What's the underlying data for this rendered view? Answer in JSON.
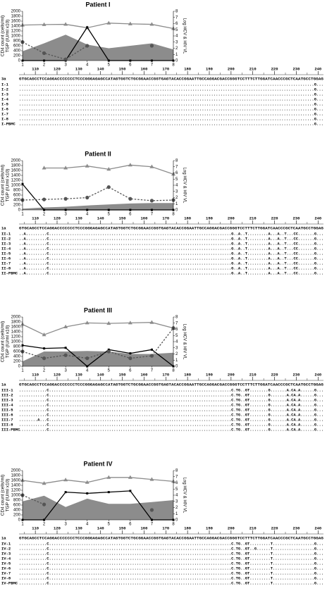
{
  "chart_data": [
    {
      "type": "combo",
      "title": "Patient I",
      "ylabel": [
        "CD4 count (cells/ml)",
        "TGP (IU/ml  x10)"
      ],
      "y2label": "Log HCV & HIV VL",
      "x": [
        1,
        2,
        3,
        4,
        5,
        6,
        7,
        8
      ],
      "xlim": [
        1,
        8
      ],
      "xticks": [
        1,
        2,
        3,
        4,
        5,
        6,
        7,
        8
      ],
      "ylim": [
        0,
        2000
      ],
      "yticks": [
        0,
        200,
        400,
        600,
        800,
        1000,
        1200,
        1400,
        1600,
        1800,
        2000
      ],
      "y2lim": [
        0,
        8
      ],
      "y2ticks": [
        0,
        1,
        2,
        3,
        4,
        5,
        6,
        7,
        8
      ],
      "series": [
        {
          "style": "area",
          "color": "#8c8c8c",
          "values": [
            380,
            700,
            1050,
            650,
            500,
            600,
            700,
            450
          ]
        },
        {
          "style": "line",
          "marker": "triangle",
          "dashed": false,
          "color": "#8c8c8c",
          "values": [
            1440,
            1460,
            1470,
            1330,
            1520,
            1490,
            1470,
            1300
          ]
        },
        {
          "style": "line",
          "marker": "square",
          "dashed": false,
          "color": "#000000",
          "axis": "y2",
          "values": [
            0,
            0,
            0,
            5.4,
            0,
            0,
            0,
            0
          ]
        },
        {
          "style": "line",
          "marker": "circle",
          "dashed": true,
          "color": "#555555",
          "axis": "y2",
          "values": [
            3.0,
            1.2,
            0.2,
            2.4,
            null,
            null,
            2.4,
            null
          ]
        }
      ]
    },
    {
      "type": "combo",
      "title": "Patient II",
      "ylabel": [
        "CD4 count (cells/ml)",
        "TGP (IU/ml  x10)"
      ],
      "y2label": "Log HCV & HIV VL",
      "x": [
        1,
        2,
        3,
        4,
        5,
        6,
        7,
        8
      ],
      "xlim": [
        1,
        8
      ],
      "xticks": [
        1,
        2,
        3,
        4,
        5,
        6,
        7,
        8
      ],
      "ylim": [
        0,
        2000
      ],
      "yticks": [
        0,
        200,
        400,
        600,
        800,
        1000,
        1200,
        1400,
        1600,
        1800,
        2000
      ],
      "y2lim": [
        0,
        8
      ],
      "y2ticks": [
        0,
        1,
        2,
        3,
        4,
        5,
        6,
        7,
        8
      ],
      "series": [
        {
          "style": "area",
          "color": "#8c8c8c",
          "values": [
            50,
            100,
            130,
            180,
            220,
            260,
            280,
            280
          ]
        },
        {
          "style": "line",
          "marker": "triangle",
          "dashed": false,
          "color": "#8c8c8c",
          "values": [
            null,
            1700,
            1700,
            1780,
            1650,
            1820,
            1750,
            1450
          ]
        },
        {
          "style": "line",
          "marker": "square",
          "dashed": false,
          "color": "#000000",
          "axis": "y2",
          "values": [
            4.2,
            0,
            0,
            0,
            0,
            0,
            0,
            0
          ]
        },
        {
          "style": "line",
          "marker": "circle",
          "dashed": true,
          "color": "#555555",
          "axis": "y2",
          "values": [
            1.6,
            1.7,
            1.8,
            2.0,
            3.7,
            1.8,
            1.5,
            1.6
          ]
        }
      ]
    },
    {
      "type": "combo",
      "title": "Patient III",
      "ylabel": [
        "CD4 count (cells/ml)",
        "TGP (IU/ml  x10)"
      ],
      "y2label": "Log HCV & HIV VL",
      "x": [
        1,
        2,
        3,
        4,
        5,
        6,
        7,
        8
      ],
      "xlim": [
        1,
        8
      ],
      "xticks": [
        1,
        2,
        3,
        4,
        5,
        6,
        7,
        8
      ],
      "ylim": [
        0,
        2000
      ],
      "yticks": [
        0,
        200,
        400,
        600,
        800,
        1000,
        1200,
        1400,
        1600,
        1800,
        2000
      ],
      "y2lim": [
        0,
        8
      ],
      "y2ticks": [
        0,
        1,
        2,
        3,
        4,
        5,
        6,
        7,
        8
      ],
      "series": [
        {
          "style": "area",
          "color": "#8c8c8c",
          "values": [
            200,
            600,
            600,
            620,
            600,
            500,
            500,
            550
          ]
        },
        {
          "style": "line",
          "marker": "triangle",
          "dashed": false,
          "color": "#8c8c8c",
          "values": [
            1700,
            1280,
            1600,
            1760,
            1740,
            1760,
            1780,
            1550
          ]
        },
        {
          "style": "line",
          "marker": "square",
          "dashed": false,
          "color": "#000000",
          "axis": "y2",
          "values": [
            3.4,
            2.9,
            3.0,
            0,
            2.7,
            2.1,
            2.7,
            0
          ]
        },
        {
          "style": "line",
          "marker": "circle",
          "dashed": true,
          "color": "#555555",
          "axis": "y2",
          "values": [
            2.4,
            1.3,
            1.8,
            1.3,
            2.4,
            1.3,
            1.7,
            6.2
          ]
        }
      ]
    },
    {
      "type": "combo",
      "title": "Patient IV",
      "ylabel": [
        "CD4 count (cells/ml)",
        "TGP (IU/ml  x10)"
      ],
      "y2label": "Log HCV & HIV VL",
      "x": [
        1,
        2,
        3,
        4,
        5,
        6,
        7,
        8
      ],
      "xlim": [
        1,
        8
      ],
      "xticks": [
        1,
        2,
        3,
        4,
        5,
        6,
        7,
        8
      ],
      "ylim": [
        0,
        2000
      ],
      "yticks": [
        0,
        200,
        400,
        600,
        800,
        1000,
        1200,
        1400,
        1600,
        1800,
        2000
      ],
      "y2lim": [
        0,
        8
      ],
      "y2ticks": [
        0,
        1,
        2,
        3,
        4,
        5,
        6,
        7,
        8
      ],
      "series": [
        {
          "style": "area",
          "color": "#8c8c8c",
          "values": [
            750,
            980,
            520,
            860,
            650,
            650,
            720,
            800
          ]
        },
        {
          "style": "line",
          "marker": "triangle",
          "dashed": false,
          "color": "#8c8c8c",
          "values": [
            1600,
            1480,
            1620,
            1520,
            1720,
            1720,
            1640,
            1560
          ]
        },
        {
          "style": "line",
          "marker": "square",
          "dashed": false,
          "color": "#000000",
          "axis": "y2",
          "values": [
            0,
            0,
            4.5,
            4.3,
            4.5,
            4.7,
            0,
            0
          ]
        },
        {
          "style": "line",
          "marker": "circle",
          "dashed": true,
          "color": "#555555",
          "axis": "y2",
          "values": [
            4.0,
            2.5,
            null,
            null,
            null,
            null,
            1.6,
            null
          ]
        }
      ]
    }
  ],
  "alignments": [
    {
      "ruler": [
        110,
        120,
        130,
        140,
        150,
        160,
        170,
        180,
        190,
        200,
        210,
        220,
        230,
        240
      ],
      "ref_label": "3a",
      "reference": "GTGCAGCCTCCAGGACCCCCCCTCCCGGGAGAGCCATAGTGGTCTGCGGAACCGGTGAGTACACCGGAATTGCCAGGACGACCGGGTCCTTTCTTGGATCAACCCGCTCAATGCCTGGAG",
      "rows": [
        {
          "name": "I-1",
          "seq": "..............................................................................................................................G..."
        },
        {
          "name": "I-2",
          "seq": "..............................................................................................................................G..."
        },
        {
          "name": "I-3",
          "seq": "..............................................................................................................................G..."
        },
        {
          "name": "I-4",
          "seq": "..............................................................................................................................G..."
        },
        {
          "name": "I-5",
          "seq": "..............................................................................................................................G..."
        },
        {
          "name": "I-6",
          "seq": "..............................................................................................................................G..."
        },
        {
          "name": "I-7",
          "seq": "..............................................................................................................................G..."
        },
        {
          "name": "I-8",
          "seq": "..............................................................................................................................G..."
        },
        {
          "name": "I-PBMC",
          "seq": "..............................................................................................................................G..."
        }
      ]
    },
    {
      "ruler": [
        110,
        120,
        130,
        140,
        150,
        160,
        170,
        180,
        190,
        200,
        210,
        220,
        230,
        240
      ],
      "ref_label": "1a",
      "reference": "GTGCAGCCTCCAGGACCCCCCCTCCCGGGAGAGCCATAGTGGTCTGCGGAACCGGTGAGTACACCGGAATTGCCAGGACGACCGGGTCCTTTCTTGGATCAACCCGCTCAATGCCTGGAG",
      "rows": [
        {
          "name": "II-1",
          "seq": "..A.........C...............................................................................G..A..T.........A...A..T...CC.......G..."
        },
        {
          "name": "II-2",
          "seq": "..A.........C...............................................................................G..A..T.........A...A..T...CC.......G..."
        },
        {
          "name": "II-3",
          "seq": "..A.........C...............................................................................G..A..T.........A...A..T...CC.......G..."
        },
        {
          "name": "II-4",
          "seq": "..A.........C...............................................................................G..A..T.........A...A..T...CC.......G..."
        },
        {
          "name": "II-5",
          "seq": "..A.........C...............................................................................G..A..T.........A...A..T...CC.......G..."
        },
        {
          "name": "II-6",
          "seq": "..A.........C...............................................................................G..A..T.........A...A..T...CC.......G..."
        },
        {
          "name": "II-7",
          "seq": "..A.........C...............................................................................G..A..T.........A...A..T...CC.......G..."
        },
        {
          "name": "II-8",
          "seq": "..A.........C...............................................................................G..A..T.........A...A..T...CC.......G..."
        },
        {
          "name": "II-PBMC",
          "seq": "..A.........C...............................................................................G..A..T.........A...A..T...CC.......G..."
        }
      ]
    },
    {
      "ruler": [
        110,
        120,
        130,
        140,
        150,
        160,
        170,
        180,
        190,
        200,
        210,
        220,
        230,
        240
      ],
      "ref_label": "1a",
      "reference": "GTGCAGCCTCCAGGACCCCCCCTCCCGGGAGAGCCATAGTGGTCTGCGGAACCGGTGAGTACACCGGAATTGCCAGGACGACCGGGTCCTTTCTTGGATCAACCCGCTCAATGCCTGGAG",
      "rows": [
        {
          "name": "III-1",
          "seq": "............C...............................................................................C.TG..GT........G.......A.CA.A......G..."
        },
        {
          "name": "III-2",
          "seq": "............C...............................................................................C.TG..GT........G.......A.CA.A......G..."
        },
        {
          "name": "III-3",
          "seq": "............C...............................................................................C.TG..GT........G.......A.CA.A......G..."
        },
        {
          "name": "III-4",
          "seq": "............C...............................................................................C.TG..GT........G.......A.CA.A......G..."
        },
        {
          "name": "III-5",
          "seq": "............C...............................................................................C.TG..GT........G.......A.CA.A......G..."
        },
        {
          "name": "III-6",
          "seq": "............C...............................................................................C.TG..GT........G.......A.CA.A......G..."
        },
        {
          "name": "III-7",
          "seq": "........A...C...............................................................................C.TG..GT........G.......A.CA.A......G..."
        },
        {
          "name": "III-8",
          "seq": "............C...............................................................................C.TG..GT........G.......A.CA.A......G..."
        },
        {
          "name": "III-PBMC",
          "seq": "............C...............................................................................C.TG..GT........G.......A.CA.A......G..."
        }
      ]
    },
    {
      "ruler": [
        110,
        120,
        130,
        140,
        150,
        160,
        170,
        180,
        190,
        200,
        210,
        220,
        230,
        240
      ],
      "ref_label": "1a",
      "reference": "GTGCAGCCTCCAGGACCCCCCCTCCCGGGAGAGCCATAGTGGTCTGCGGAACCGGTGAGTACACCGGAATTGCCAGGACGACCGGGTCCTTTCTTGGATCAACCCGCTCAATGCCTGGAG",
      "rows": [
        {
          "name": "IV-1",
          "seq": "............C...............................................................................C.TG..GT.........T..................G..."
        },
        {
          "name": "IV-2",
          "seq": "............C...............................................................................C.TG..GT..G......T..................G..."
        },
        {
          "name": "IV-3",
          "seq": "............C...............................................................................C.TG..GT.........T..................G..."
        },
        {
          "name": "IV-4",
          "seq": "............C...............................................................................C.TG..GT.........T..................G..."
        },
        {
          "name": "IV-5",
          "seq": "............C...............................................................................C.TG..GT.........T..................G..."
        },
        {
          "name": "IV-6",
          "seq": "............C...............................................................................C.TG..GT.........T..................G..."
        },
        {
          "name": "IV-7",
          "seq": "............C...............................................................................C.TG..GT.........T..................G..."
        },
        {
          "name": "IV-8",
          "seq": "............C...............................................................................C.TG..GT.........T..................G..."
        },
        {
          "name": "IV-PBMC",
          "seq": "............C...............................................................................C.TG..GT.........T..................G..."
        }
      ]
    }
  ]
}
